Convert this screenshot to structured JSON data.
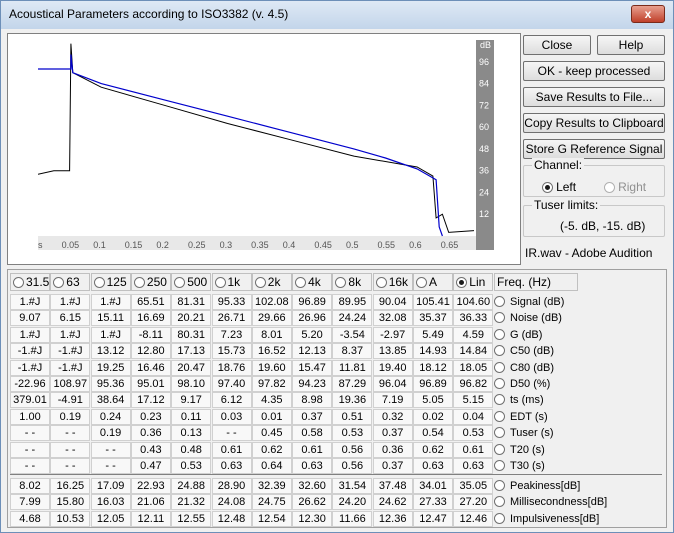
{
  "window": {
    "title": "Acoustical Parameters according to ISO3382 (v. 4.5)",
    "close_glyph": "x"
  },
  "buttons": {
    "close": "Close",
    "help": "Help",
    "ok": "OK - keep processed",
    "save": "Save Results to File...",
    "copy": "Copy Results to Clipboard",
    "store": "Store G Reference Signal"
  },
  "channel": {
    "title": "Channel:",
    "left": "Left",
    "right": "Right",
    "selected": "Left"
  },
  "tuser": {
    "title": "Tuser  limits:",
    "value": "(-5. dB, -15. dB)"
  },
  "file_label": "IR.wav - Adobe Audition",
  "chart_data": {
    "type": "line",
    "y_unit_label": "dB",
    "y_ticks": [
      "96",
      "84",
      "72",
      "60",
      "48",
      "36",
      "24",
      "12"
    ],
    "x_ticks": [
      "s",
      "0.05",
      "0.1",
      "0.15",
      "0.2",
      "0.25",
      "0.3",
      "0.35",
      "0.4",
      "0.45",
      "0.5",
      "0.55",
      "0.6",
      "0.65"
    ],
    "xlim": [
      0,
      0.69
    ],
    "ylim": [
      0,
      108
    ],
    "grid": false,
    "series": [
      {
        "color": "#000000",
        "x": [
          0.0,
          0.025,
          0.05,
          0.052,
          0.055,
          0.1,
          0.2,
          0.3,
          0.4,
          0.5,
          0.6,
          0.625,
          0.63,
          0.64,
          0.65,
          0.69
        ],
        "y": [
          34,
          36,
          36,
          106,
          90,
          82,
          72,
          62,
          53,
          44,
          38,
          33,
          10,
          12,
          2,
          3
        ]
      },
      {
        "color": "#0000cc",
        "x": [
          0.0,
          0.052,
          0.052,
          0.055,
          0.1,
          0.2,
          0.3,
          0.4,
          0.5,
          0.55,
          0.6,
          0.63,
          0.635,
          0.64
        ],
        "y": [
          92,
          92,
          100,
          90,
          84,
          75,
          66,
          57,
          48,
          43,
          37,
          31,
          5,
          0
        ]
      }
    ]
  },
  "bands": [
    "31.5",
    "63",
    "125",
    "250",
    "500",
    "1k",
    "2k",
    "4k",
    "8k",
    "16k",
    "A",
    "Lin"
  ],
  "selected_band": "Lin",
  "freq_label": "Freq. (Hz)",
  "rows": [
    {
      "label": "Signal (dB)",
      "values": [
        "1.#J",
        "1.#J",
        "1.#J",
        "65.51",
        "81.31",
        "95.33",
        "102.08",
        "96.89",
        "89.95",
        "90.04",
        "105.41",
        "104.60"
      ]
    },
    {
      "label": "Noise (dB)",
      "values": [
        "9.07",
        "6.15",
        "15.11",
        "16.69",
        "20.21",
        "26.71",
        "29.66",
        "26.96",
        "24.24",
        "32.08",
        "35.37",
        "36.33"
      ]
    },
    {
      "label": "G (dB)",
      "values": [
        "1.#J",
        "1.#J",
        "1.#J",
        "-8.11",
        "80.31",
        "7.23",
        "8.01",
        "5.20",
        "-3.54",
        "-2.97",
        "5.49",
        "4.59"
      ]
    },
    {
      "label": "C50 (dB)",
      "values": [
        "-1.#J",
        "-1.#J",
        "13.12",
        "12.80",
        "17.13",
        "15.73",
        "16.52",
        "12.13",
        "8.37",
        "13.85",
        "14.93",
        "14.84"
      ]
    },
    {
      "label": "C80 (dB)",
      "values": [
        "-1.#J",
        "-1.#J",
        "19.25",
        "16.46",
        "20.47",
        "18.76",
        "19.60",
        "15.47",
        "11.81",
        "19.40",
        "18.12",
        "18.05"
      ]
    },
    {
      "label": "D50 (%)",
      "values": [
        "-22.96",
        "108.97",
        "95.36",
        "95.01",
        "98.10",
        "97.40",
        "97.82",
        "94.23",
        "87.29",
        "96.04",
        "96.89",
        "96.82"
      ]
    },
    {
      "label": "ts (ms)",
      "values": [
        "379.01",
        "-4.91",
        "38.64",
        "17.12",
        "9.17",
        "6.12",
        "4.35",
        "8.98",
        "19.36",
        "7.19",
        "5.05",
        "5.15"
      ]
    },
    {
      "label": "EDT (s)",
      "values": [
        "1.00",
        "0.19",
        "0.24",
        "0.23",
        "0.11",
        "0.03",
        "0.01",
        "0.37",
        "0.51",
        "0.32",
        "0.02",
        "0.04"
      ]
    },
    {
      "label": "Tuser (s)",
      "values": [
        "- -",
        "- -",
        "0.19",
        "0.36",
        "0.13",
        "- -",
        "0.45",
        "0.58",
        "0.53",
        "0.37",
        "0.54",
        "0.53"
      ]
    },
    {
      "label": "T20 (s)",
      "values": [
        "- -",
        "- -",
        "- -",
        "0.43",
        "0.48",
        "0.61",
        "0.62",
        "0.61",
        "0.56",
        "0.36",
        "0.62",
        "0.61"
      ]
    },
    {
      "label": "T30 (s)",
      "values": [
        "- -",
        "- -",
        "- -",
        "0.47",
        "0.53",
        "0.63",
        "0.64",
        "0.63",
        "0.56",
        "0.37",
        "0.63",
        "0.63"
      ]
    }
  ],
  "rows2": [
    {
      "label": "Peakiness[dB]",
      "values": [
        "8.02",
        "16.25",
        "17.09",
        "22.93",
        "24.88",
        "28.90",
        "32.39",
        "32.60",
        "31.54",
        "37.48",
        "34.01",
        "35.05"
      ]
    },
    {
      "label": "Millisecondness[dB]",
      "values": [
        "7.99",
        "15.80",
        "16.03",
        "21.06",
        "21.32",
        "24.08",
        "24.75",
        "26.62",
        "24.20",
        "24.62",
        "27.33",
        "27.20"
      ]
    },
    {
      "label": "Impulsiveness[dB]",
      "values": [
        "4.68",
        "10.53",
        "12.05",
        "12.11",
        "12.55",
        "12.48",
        "12.54",
        "12.30",
        "11.66",
        "12.36",
        "12.47",
        "12.46"
      ]
    }
  ]
}
